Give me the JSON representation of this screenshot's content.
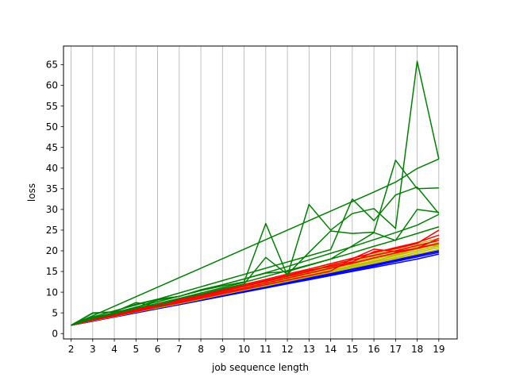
{
  "chart_data": {
    "type": "line",
    "title": "",
    "xlabel": "job sequence length",
    "ylabel": "loss",
    "xlim": [
      1.65,
      19.85
    ],
    "ylim": [
      -1.3,
      69.5
    ],
    "x_ticks": [
      2,
      3,
      4,
      5,
      6,
      7,
      8,
      9,
      10,
      11,
      12,
      13,
      14,
      15,
      16,
      17,
      18,
      19
    ],
    "y_ticks": [
      0,
      5,
      10,
      15,
      20,
      25,
      30,
      35,
      40,
      45,
      50,
      55,
      60,
      65
    ],
    "grid": {
      "x": true,
      "y": false
    },
    "legend": "none",
    "colors": {
      "blue": "#0000ff",
      "yellow": "#bfbf00",
      "red": "#ff0000",
      "green": "#008000",
      "grid": "#b0b0b0"
    },
    "x": [
      2,
      3,
      4,
      5,
      6,
      7,
      8,
      9,
      10,
      11,
      12,
      13,
      14,
      15,
      16,
      17,
      18,
      19
    ],
    "series": [
      {
        "color": "#0000ff",
        "values": [
          2.0,
          3.0,
          4.0,
          5.0,
          6.0,
          7.0,
          8.0,
          9.0,
          10.0,
          11.0,
          12.0,
          13.0,
          14.0,
          15.0,
          16.0,
          17.0,
          18.0,
          19.2
        ]
      },
      {
        "color": "#0000ff",
        "values": [
          2.0,
          3.0,
          4.0,
          5.0,
          6.0,
          7.0,
          8.0,
          9.0,
          10.1,
          11.1,
          12.1,
          13.1,
          14.2,
          15.2,
          16.3,
          17.4,
          18.5,
          19.6
        ]
      },
      {
        "color": "#0000ff",
        "values": [
          2.0,
          3.0,
          4.0,
          5.0,
          6.0,
          7.0,
          8.0,
          9.1,
          10.2,
          11.2,
          12.3,
          13.3,
          14.4,
          15.5,
          16.5,
          17.6,
          18.8,
          19.9
        ]
      },
      {
        "color": "#0000ff",
        "values": [
          2.0,
          3.0,
          4.1,
          5.1,
          6.1,
          7.1,
          8.1,
          9.2,
          10.2,
          11.3,
          12.4,
          13.5,
          14.5,
          15.6,
          16.7,
          17.8,
          19.0,
          20.1
        ]
      },
      {
        "color": "#bfbf00",
        "values": [
          2.0,
          3.1,
          4.1,
          5.2,
          6.2,
          7.2,
          8.3,
          9.4,
          10.5,
          11.5,
          12.6,
          13.7,
          14.8,
          15.9,
          17.0,
          18.1,
          19.2,
          20.3
        ]
      },
      {
        "color": "#bfbf00",
        "values": [
          2.0,
          3.1,
          4.2,
          5.2,
          6.3,
          7.3,
          8.4,
          9.5,
          10.6,
          11.7,
          12.8,
          13.9,
          15.0,
          16.2,
          17.3,
          18.4,
          19.6,
          20.8
        ]
      },
      {
        "color": "#bfbf00",
        "values": [
          2.0,
          3.2,
          4.2,
          5.3,
          6.4,
          7.4,
          8.5,
          9.6,
          10.8,
          11.9,
          13.0,
          14.1,
          15.3,
          16.4,
          17.6,
          18.8,
          20.0,
          21.2
        ]
      },
      {
        "color": "#bfbf00",
        "values": [
          2.0,
          3.2,
          4.3,
          5.4,
          6.5,
          7.6,
          8.7,
          9.8,
          10.9,
          12.1,
          13.2,
          14.4,
          15.6,
          16.8,
          18.0,
          19.2,
          20.4,
          21.6
        ]
      },
      {
        "color": "#bfbf00",
        "values": [
          2.0,
          3.3,
          4.4,
          5.5,
          6.6,
          7.7,
          8.8,
          10.0,
          11.1,
          12.3,
          13.5,
          14.7,
          15.9,
          17.1,
          18.3,
          19.5,
          20.8,
          22.0
        ]
      },
      {
        "color": "#bfbf00",
        "values": [
          2.0,
          3.3,
          4.5,
          5.6,
          6.7,
          7.8,
          9.0,
          10.1,
          11.3,
          12.5,
          13.7,
          15.0,
          16.2,
          17.4,
          18.7,
          19.9,
          21.2,
          22.5
        ]
      },
      {
        "color": "#bfbf00",
        "values": [
          2.0,
          3.4,
          4.6,
          5.7,
          6.8,
          8.0,
          9.2,
          10.3,
          11.6,
          12.8,
          14.0,
          15.3,
          16.6,
          17.8,
          19.1,
          20.4,
          21.7,
          23.0
        ]
      },
      {
        "color": "#bfbf00",
        "values": [
          2.0,
          3.2,
          4.3,
          5.6,
          6.6,
          7.5,
          8.6,
          9.7,
          10.8,
          12.2,
          13.1,
          14.0,
          15.0,
          16.5,
          17.5,
          18.9,
          20.5,
          22.0
        ]
      },
      {
        "color": "#bfbf00",
        "values": [
          2.0,
          3.3,
          4.4,
          5.4,
          6.7,
          7.8,
          8.9,
          10.2,
          11.0,
          12.0,
          13.6,
          14.4,
          16.0,
          17.0,
          18.2,
          19.0,
          21.0,
          21.3
        ]
      },
      {
        "color": "#ff0000",
        "values": [
          2.0,
          3.2,
          4.3,
          5.4,
          6.5,
          7.6,
          8.8,
          9.9,
          11.0,
          12.2,
          13.4,
          14.6,
          15.8,
          17.0,
          18.3,
          19.5,
          20.6,
          21.8
        ]
      },
      {
        "color": "#ff0000",
        "values": [
          2.0,
          3.3,
          4.4,
          5.6,
          6.8,
          7.9,
          9.1,
          10.2,
          11.4,
          12.6,
          13.8,
          15.0,
          16.5,
          17.8,
          18.9,
          20.0,
          21.3,
          22.5
        ]
      },
      {
        "color": "#ff0000",
        "values": [
          2.0,
          3.5,
          4.6,
          5.9,
          7.0,
          8.2,
          9.4,
          10.6,
          11.9,
          13.1,
          14.4,
          15.6,
          16.9,
          18.2,
          19.5,
          20.8,
          22.0,
          23.8
        ]
      },
      {
        "color": "#ff0000",
        "values": [
          2.0,
          3.2,
          4.2,
          5.3,
          6.4,
          7.4,
          8.5,
          9.6,
          10.7,
          11.8,
          12.9,
          14.0,
          15.1,
          18.1,
          20.4,
          19.8,
          20.6,
          23.0
        ]
      },
      {
        "color": "#ff0000",
        "values": [
          2.0,
          3.4,
          4.5,
          5.7,
          6.9,
          8.0,
          9.2,
          10.4,
          11.6,
          12.8,
          14.1,
          15.3,
          16.2,
          17.3,
          19.8,
          20.5,
          21.8,
          25.0
        ]
      },
      {
        "color": "#008000",
        "values": [
          2.0,
          3.6,
          4.8,
          6.1,
          7.3,
          8.5,
          9.8,
          11.1,
          12.4,
          13.8,
          15.2,
          16.6,
          18.0,
          19.5,
          21.1,
          22.6,
          24.2,
          25.8
        ]
      },
      {
        "color": "#008000",
        "values": [
          2.0,
          3.8,
          5.0,
          6.4,
          7.7,
          9.0,
          10.4,
          11.8,
          13.2,
          14.7,
          16.2,
          17.8,
          19.4,
          21.0,
          22.7,
          24.4,
          26.2,
          28.8
        ]
      },
      {
        "color": "#008000",
        "values": [
          2.0,
          5.0,
          5.2,
          7.5,
          6.6,
          8.5,
          9.5,
          10.8,
          12.0,
          18.4,
          14.3,
          19.6,
          24.8,
          24.2,
          24.5,
          41.9,
          35.0,
          35.2
        ]
      },
      {
        "color": "#008000",
        "values": [
          2.0,
          3.6,
          5.1,
          6.3,
          8.1,
          9.0,
          10.4,
          11.5,
          12.5,
          26.6,
          14.0,
          31.2,
          25.0,
          29.0,
          30.2,
          25.4,
          65.8,
          42.2
        ]
      },
      {
        "color": "#008000",
        "values": [
          2.0,
          4.9,
          5.3,
          7.1,
          8.3,
          9.0,
          10.6,
          11.8,
          13.2,
          14.6,
          15.0,
          16.5,
          18.0,
          21.2,
          24.4,
          22.5,
          30.0,
          29.3
        ]
      },
      {
        "color": "#008000",
        "values": [
          2.0,
          4.0,
          5.5,
          6.9,
          8.3,
          9.8,
          11.3,
          12.8,
          14.3,
          15.8,
          17.3,
          18.8,
          20.3,
          32.5,
          27.3,
          33.5,
          35.4,
          29.0
        ]
      },
      {
        "color": "#008000",
        "values": [
          2.0,
          4.3,
          6.6,
          8.9,
          11.2,
          13.5,
          15.8,
          18.1,
          20.4,
          22.7,
          25.0,
          27.3,
          29.6,
          31.9,
          34.2,
          36.6,
          39.9,
          42.2
        ]
      }
    ]
  }
}
